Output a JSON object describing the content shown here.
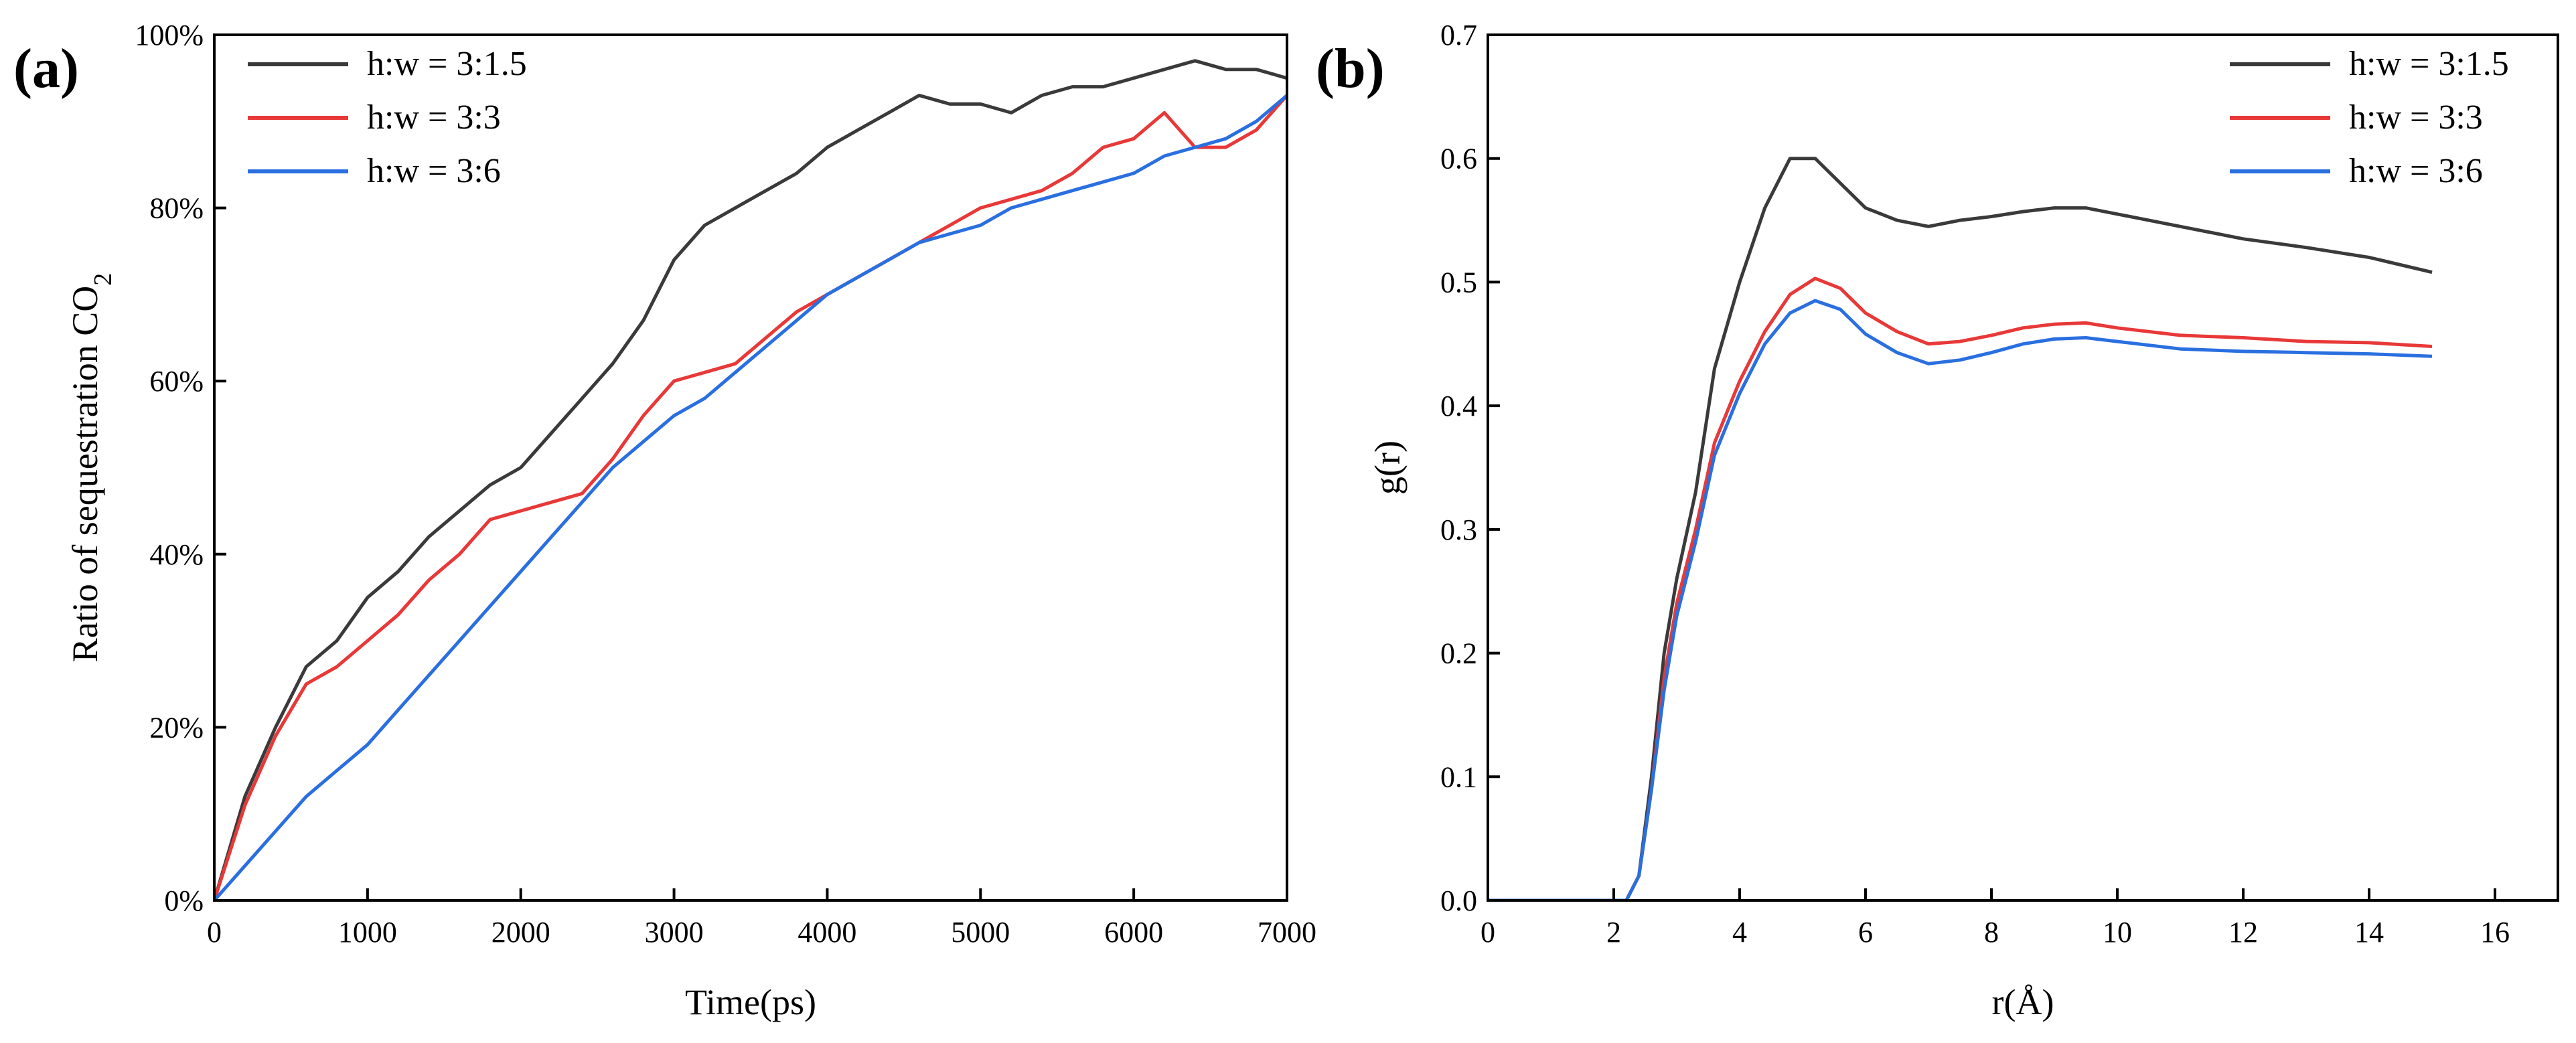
{
  "chart_data": [
    {
      "panel_label": "(a)",
      "type": "line",
      "title": "",
      "xlabel": "Time(ps)",
      "ylabel": "Ratio of sequestration CO",
      "ylabel_subscript": "2",
      "xlim": [
        0,
        7000
      ],
      "ylim": [
        0,
        100
      ],
      "xticks": [
        0,
        1000,
        2000,
        3000,
        4000,
        5000,
        6000,
        7000
      ],
      "yticks": [
        0,
        20,
        40,
        60,
        80,
        100
      ],
      "ytick_labels": [
        "0%",
        "20%",
        "40%",
        "60%",
        "80%",
        "100%"
      ],
      "grid": false,
      "legend_position": "top-left",
      "series": [
        {
          "name": "h:w = 3:1.5",
          "color": "#3a3a3a",
          "x": [
            0,
            200,
            400,
            600,
            800,
            1000,
            1200,
            1400,
            1600,
            1800,
            2000,
            2200,
            2400,
            2600,
            2800,
            3000,
            3200,
            3400,
            3600,
            3800,
            4000,
            4200,
            4400,
            4600,
            4800,
            5000,
            5200,
            5400,
            5600,
            5800,
            6000,
            6200,
            6400,
            6600,
            6800,
            7000
          ],
          "y": [
            0,
            12,
            20,
            27,
            30,
            35,
            38,
            42,
            45,
            48,
            50,
            54,
            58,
            62,
            67,
            74,
            78,
            80,
            82,
            84,
            87,
            89,
            91,
            93,
            92,
            92,
            91,
            93,
            94,
            94,
            95,
            96,
            97,
            96,
            96,
            95
          ]
        },
        {
          "name": "h:w = 3:3",
          "color": "#e83838",
          "x": [
            0,
            200,
            400,
            600,
            800,
            1000,
            1200,
            1400,
            1600,
            1800,
            2000,
            2200,
            2400,
            2600,
            2800,
            3000,
            3200,
            3400,
            3600,
            3800,
            4000,
            4200,
            4400,
            4600,
            4800,
            5000,
            5200,
            5400,
            5600,
            5800,
            6000,
            6200,
            6400,
            6600,
            6800,
            7000
          ],
          "y": [
            0,
            11,
            19,
            25,
            27,
            30,
            33,
            37,
            40,
            44,
            45,
            46,
            47,
            51,
            56,
            60,
            61,
            62,
            65,
            68,
            70,
            72,
            74,
            76,
            78,
            80,
            81,
            82,
            84,
            87,
            88,
            91,
            87,
            87,
            89,
            93
          ]
        },
        {
          "name": "h:w = 3:6",
          "color": "#2a6fe0",
          "x": [
            0,
            200,
            400,
            600,
            800,
            1000,
            1200,
            1400,
            1600,
            1800,
            2000,
            2200,
            2400,
            2600,
            2800,
            3000,
            3200,
            3400,
            3600,
            3800,
            4000,
            4200,
            4400,
            4600,
            4800,
            5000,
            5200,
            5400,
            5600,
            5800,
            6000,
            6200,
            6400,
            6600,
            6800,
            7000
          ],
          "y": [
            0,
            4,
            8,
            12,
            15,
            18,
            22,
            26,
            30,
            34,
            38,
            42,
            46,
            50,
            53,
            56,
            58,
            61,
            64,
            67,
            70,
            72,
            74,
            76,
            77,
            78,
            80,
            81,
            82,
            83,
            84,
            86,
            87,
            88,
            90,
            93
          ]
        }
      ]
    },
    {
      "panel_label": "(b)",
      "type": "line",
      "title": "",
      "xlabel": "r(Å)",
      "ylabel": "g(r)",
      "xlim": [
        0,
        17
      ],
      "ylim": [
        0,
        0.7
      ],
      "xticks": [
        0,
        2,
        4,
        6,
        8,
        10,
        12,
        14,
        16
      ],
      "yticks": [
        0.0,
        0.1,
        0.2,
        0.3,
        0.4,
        0.5,
        0.6,
        0.7
      ],
      "ytick_labels": [
        "0.0",
        "0.1",
        "0.2",
        "0.3",
        "0.4",
        "0.5",
        "0.6",
        "0.7"
      ],
      "grid": false,
      "legend_position": "top-right",
      "series": [
        {
          "name": "h:w = 3:1.5",
          "color": "#3a3a3a",
          "x": [
            0,
            2.2,
            2.4,
            2.6,
            2.8,
            3.0,
            3.3,
            3.6,
            4.0,
            4.4,
            4.8,
            5.2,
            5.6,
            6.0,
            6.5,
            7.0,
            7.5,
            8.0,
            8.5,
            9.0,
            9.5,
            10.0,
            11.0,
            12.0,
            13.0,
            14.0,
            15.0
          ],
          "y": [
            0,
            0,
            0.02,
            0.1,
            0.2,
            0.26,
            0.33,
            0.43,
            0.5,
            0.56,
            0.6,
            0.6,
            0.58,
            0.56,
            0.55,
            0.545,
            0.55,
            0.553,
            0.557,
            0.56,
            0.56,
            0.555,
            0.545,
            0.535,
            0.528,
            0.52,
            0.508
          ]
        },
        {
          "name": "h:w = 3:3",
          "color": "#e83838",
          "x": [
            0,
            2.2,
            2.4,
            2.6,
            2.8,
            3.0,
            3.3,
            3.6,
            4.0,
            4.4,
            4.8,
            5.2,
            5.6,
            6.0,
            6.5,
            7.0,
            7.5,
            8.0,
            8.5,
            9.0,
            9.5,
            10.0,
            11.0,
            12.0,
            13.0,
            14.0,
            15.0
          ],
          "y": [
            0,
            0,
            0.02,
            0.09,
            0.18,
            0.24,
            0.3,
            0.37,
            0.42,
            0.46,
            0.49,
            0.503,
            0.495,
            0.475,
            0.46,
            0.45,
            0.452,
            0.457,
            0.463,
            0.466,
            0.467,
            0.463,
            0.457,
            0.455,
            0.452,
            0.451,
            0.448
          ]
        },
        {
          "name": "h:w = 3:6",
          "color": "#2a6fe0",
          "x": [
            0,
            2.2,
            2.4,
            2.6,
            2.8,
            3.0,
            3.3,
            3.6,
            4.0,
            4.4,
            4.8,
            5.2,
            5.6,
            6.0,
            6.5,
            7.0,
            7.5,
            8.0,
            8.5,
            9.0,
            9.5,
            10.0,
            11.0,
            12.0,
            13.0,
            14.0,
            15.0
          ],
          "y": [
            0,
            0,
            0.02,
            0.09,
            0.17,
            0.23,
            0.29,
            0.36,
            0.41,
            0.45,
            0.475,
            0.485,
            0.478,
            0.458,
            0.443,
            0.434,
            0.437,
            0.443,
            0.45,
            0.454,
            0.455,
            0.452,
            0.446,
            0.444,
            0.443,
            0.442,
            0.44
          ]
        }
      ]
    }
  ]
}
